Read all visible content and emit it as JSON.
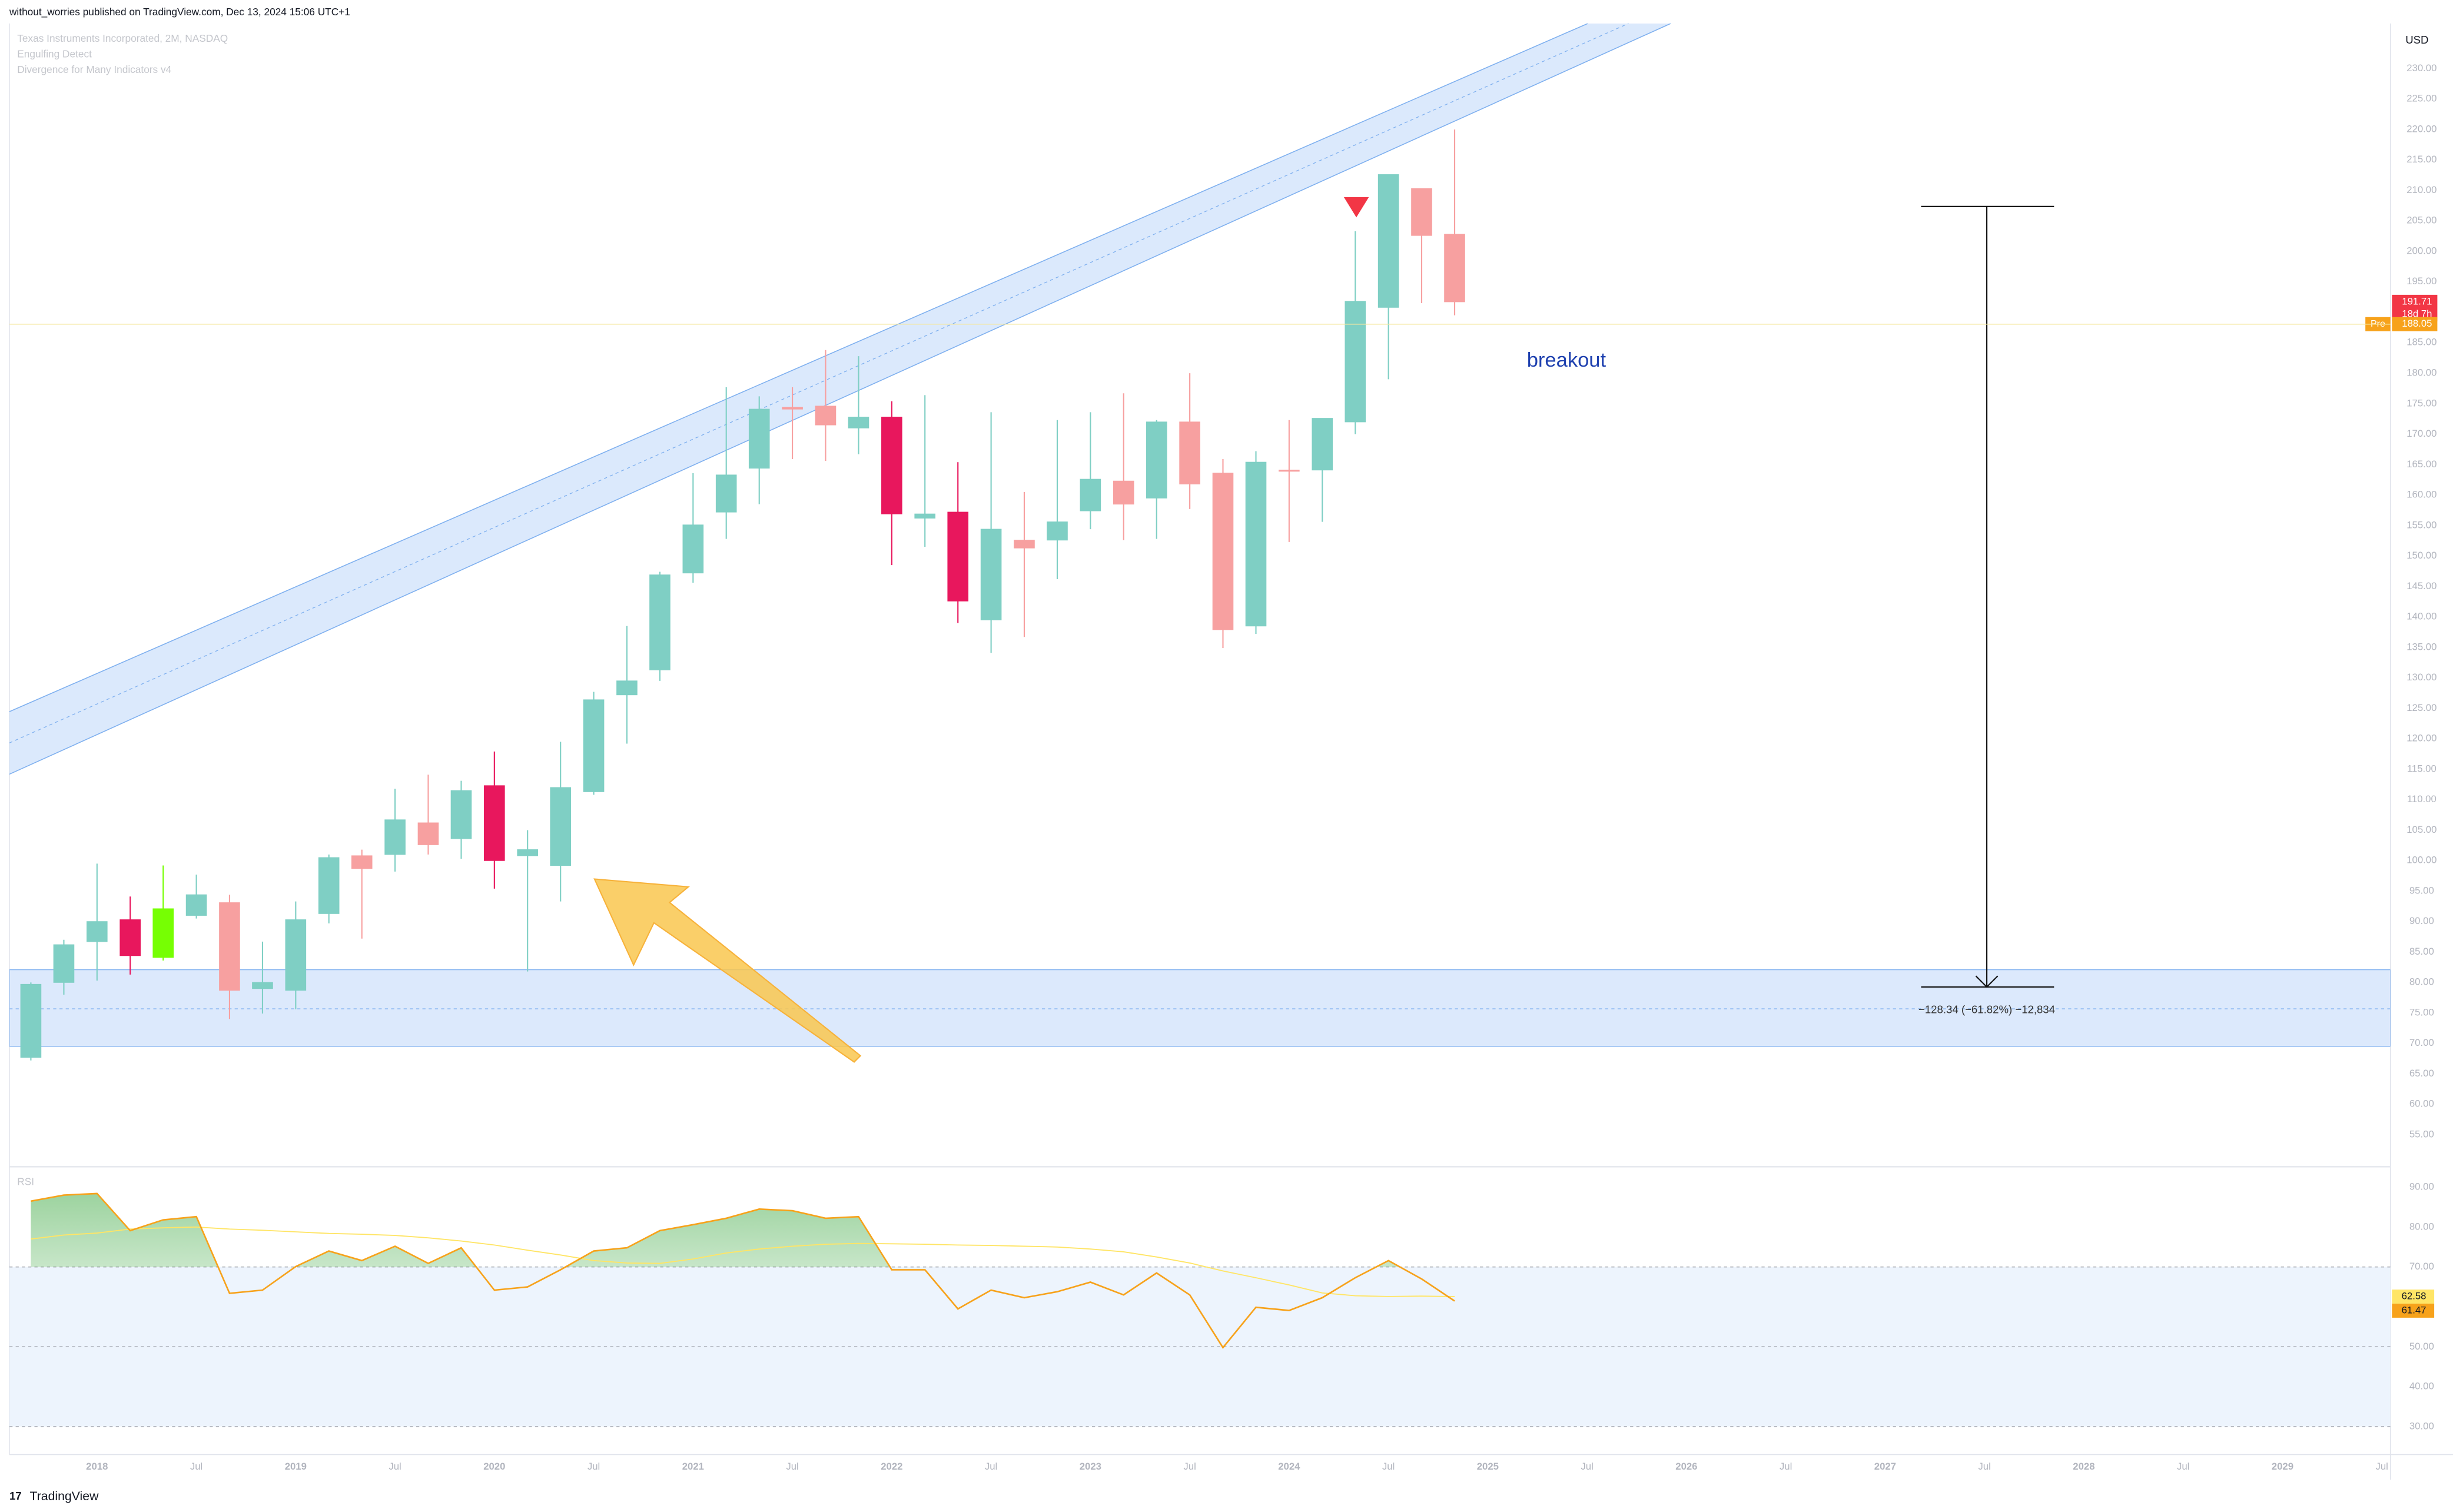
{
  "header": {
    "publisher": "without_worries published on TradingView.com, Dec 13, 2024 15:06 UTC+1",
    "symbol": "Texas Instruments Incorporated, 2M, NASDAQ",
    "indicator_1": "Engulfing Detect",
    "indicator_2": "Divergence for Many Indicators v4"
  },
  "chart_data": {
    "type": "candlestick",
    "x": [
      2017.667,
      2017.833,
      2018,
      2018.167,
      2018.333,
      2018.5,
      2018.667,
      2018.833,
      2019,
      2019.167,
      2019.333,
      2019.5,
      2019.667,
      2019.833,
      2020,
      2020.167,
      2020.333,
      2020.5,
      2020.667,
      2020.833,
      2021,
      2021.167,
      2021.333,
      2021.5,
      2021.667,
      2021.833,
      2022,
      2022.167,
      2022.333,
      2022.5,
      2022.667,
      2022.833,
      2023,
      2023.167,
      2023.333,
      2023.5,
      2023.667,
      2023.833,
      2024,
      2024.167,
      2024.333,
      2024.5,
      2024.667,
      2024.833
    ],
    "open": [
      67.7,
      80,
      86.7,
      90.3,
      84.1,
      91,
      93.1,
      79,
      78.7,
      91.3,
      100.8,
      101,
      106.2,
      103.6,
      112.3,
      100.8,
      99.2,
      111.3,
      127.2,
      131.3,
      147.2,
      157.2,
      164.4,
      174.4,
      174.6,
      171,
      172.8,
      156.2,
      157.2,
      139.5,
      152.6,
      152.6,
      157.4,
      162.3,
      159.5,
      172,
      163.6,
      138.5,
      164.1,
      164.1,
      172,
      190.8,
      210.3,
      202.8
    ],
    "high": [
      80,
      87,
      99.5,
      94.1,
      99.2,
      97.7,
      94.4,
      86.7,
      93.3,
      101,
      101.8,
      111.8,
      114.1,
      113.1,
      117.9,
      105,
      119.5,
      127.7,
      138.5,
      147.4,
      163.6,
      177.7,
      176.2,
      177.7,
      183.8,
      182.8,
      175.4,
      176.4,
      165.4,
      173.6,
      160.5,
      172.3,
      173.6,
      176.7,
      172.3,
      180,
      165.9,
      167.2,
      172.3,
      172.6,
      203.3,
      212.6,
      210.3,
      220
    ],
    "low": [
      67.2,
      78,
      80.3,
      81.3,
      83.6,
      90.5,
      74,
      74.9,
      75.6,
      89.7,
      87.2,
      98.2,
      101,
      100.3,
      95.4,
      81.8,
      93.3,
      110.8,
      119.2,
      129.5,
      145.6,
      152.8,
      158.5,
      165.9,
      165.6,
      166.7,
      148.5,
      151.5,
      139,
      134.1,
      136.7,
      146.2,
      154.4,
      152.6,
      152.8,
      157.7,
      134.9,
      137.2,
      152.3,
      155.6,
      170,
      179,
      191.5,
      189.5
    ],
    "close": [
      79.7,
      86.2,
      90,
      84.4,
      92.1,
      94.4,
      78.7,
      80,
      90.3,
      100.5,
      98.7,
      106.7,
      102.6,
      111.5,
      100,
      101.8,
      112,
      126.4,
      129.5,
      146.9,
      155.1,
      163.3,
      174.1,
      174.1,
      171.5,
      172.8,
      156.9,
      156.9,
      142.6,
      154.4,
      151.3,
      155.6,
      162.6,
      158.5,
      172,
      161.8,
      137.9,
      165.4,
      164,
      172.6,
      191.8,
      212.6,
      202.6,
      191.71
    ],
    "colors": [
      "#7fcfc4",
      "#7fcfc4",
      "#7fcfc4",
      "#e8175d",
      "#76ff03",
      "#7fcfc4",
      "#f7a0a0",
      "#7fcfc4",
      "#7fcfc4",
      "#7fcfc4",
      "#f7a0a0",
      "#7fcfc4",
      "#f7a0a0",
      "#7fcfc4",
      "#e8175d",
      "#7fcfc4",
      "#7fcfc4",
      "#7fcfc4",
      "#7fcfc4",
      "#7fcfc4",
      "#7fcfc4",
      "#7fcfc4",
      "#7fcfc4",
      "#f7a0a0",
      "#f7a0a0",
      "#7fcfc4",
      "#e8175d",
      "#7fcfc4",
      "#e8175d",
      "#7fcfc4",
      "#f7a0a0",
      "#7fcfc4",
      "#7fcfc4",
      "#f7a0a0",
      "#7fcfc4",
      "#f7a0a0",
      "#f7a0a0",
      "#7fcfc4",
      "#f7a0a0",
      "#7fcfc4",
      "#7fcfc4",
      "#7fcfc4",
      "#f7a0a0",
      "#f7a0a0"
    ],
    "xlim": [
      2017.559,
      2029.543
    ],
    "xticks": [
      {
        "value": 2018,
        "label": "2018"
      },
      {
        "value": 2018.5,
        "label": "Jul"
      },
      {
        "value": 2019,
        "label": "2019"
      },
      {
        "value": 2019.5,
        "label": "Jul"
      },
      {
        "value": 2020,
        "label": "2020"
      },
      {
        "value": 2020.5,
        "label": "Jul"
      },
      {
        "value": 2021,
        "label": "2021"
      },
      {
        "value": 2021.5,
        "label": "Jul"
      },
      {
        "value": 2022,
        "label": "2022"
      },
      {
        "value": 2022.5,
        "label": "Jul"
      },
      {
        "value": 2023,
        "label": "2023"
      },
      {
        "value": 2023.5,
        "label": "Jul"
      },
      {
        "value": 2024,
        "label": "2024"
      },
      {
        "value": 2024.5,
        "label": "Jul"
      },
      {
        "value": 2025,
        "label": "2025"
      },
      {
        "value": 2025.5,
        "label": "Jul"
      },
      {
        "value": 2026,
        "label": "2026"
      },
      {
        "value": 2026.5,
        "label": "Jul"
      },
      {
        "value": 2027,
        "label": "2027"
      },
      {
        "value": 2027.5,
        "label": "Jul"
      },
      {
        "value": 2028,
        "label": "2028"
      },
      {
        "value": 2028.5,
        "label": "Jul"
      },
      {
        "value": 2029,
        "label": "2029"
      },
      {
        "value": 2029.5,
        "label": "Jul"
      }
    ],
    "ylim": [
      50,
      237.4
    ],
    "yticks": [
      {
        "value": 55,
        "label": "55.00"
      },
      {
        "value": 60,
        "label": "60.00"
      },
      {
        "value": 65,
        "label": "65.00"
      },
      {
        "value": 70,
        "label": "70.00"
      },
      {
        "value": 75,
        "label": "75.00"
      },
      {
        "value": 80,
        "label": "80.00"
      },
      {
        "value": 85,
        "label": "85.00"
      },
      {
        "value": 90,
        "label": "90.00"
      },
      {
        "value": 95,
        "label": "95.00"
      },
      {
        "value": 100,
        "label": "100.00"
      },
      {
        "value": 105,
        "label": "105.00"
      },
      {
        "value": 110,
        "label": "110.00"
      },
      {
        "value": 115,
        "label": "115.00"
      },
      {
        "value": 120,
        "label": "120.00"
      },
      {
        "value": 125,
        "label": "125.00"
      },
      {
        "value": 130,
        "label": "130.00"
      },
      {
        "value": 135,
        "label": "135.00"
      },
      {
        "value": 140,
        "label": "140.00"
      },
      {
        "value": 145,
        "label": "145.00"
      },
      {
        "value": 150,
        "label": "150.00"
      },
      {
        "value": 155,
        "label": "155.00"
      },
      {
        "value": 160,
        "label": "160.00"
      },
      {
        "value": 165,
        "label": "165.00"
      },
      {
        "value": 170,
        "label": "170.00"
      },
      {
        "value": 175,
        "label": "175.00"
      },
      {
        "value": 180,
        "label": "180.00"
      },
      {
        "value": 185,
        "label": "185.00"
      },
      {
        "value": 190,
        "label": "190.00"
      },
      {
        "value": 195,
        "label": "195.00"
      },
      {
        "value": 200,
        "label": "200.00"
      },
      {
        "value": 205,
        "label": "205.00"
      },
      {
        "value": 210,
        "label": "210.00"
      },
      {
        "value": 215,
        "label": "215.00"
      },
      {
        "value": 220,
        "label": "220.00"
      },
      {
        "value": 225,
        "label": "225.00"
      },
      {
        "value": 230,
        "label": "230.00"
      }
    ],
    "y_axis_label": "USD",
    "countdown": "18d 7h",
    "pre_market": {
      "label": "Pre",
      "value": 188.05
    },
    "annotations": {
      "breakout": "breakout",
      "measure": "−128.34 (−61.82%) −12,834"
    },
    "rsi": {
      "title": "RSI",
      "values": [
        86.5,
        88,
        88.4,
        79.1,
        81.8,
        82.6,
        63.4,
        64.2,
        70.1,
        74,
        71.6,
        75.2,
        70.9,
        74.8,
        64.2,
        65,
        69.3,
        74,
        74.8,
        79.1,
        80.6,
        82.2,
        84.5,
        84.1,
        82.2,
        82.6,
        69.3,
        69.3,
        59.5,
        64.2,
        62.3,
        63.8,
        66.2,
        63,
        68.5,
        63,
        49.8,
        59.9,
        59.1,
        62.3,
        67.3,
        71.6,
        67,
        61.47
      ],
      "ma_values": [
        77,
        78,
        78.5,
        79.5,
        79.8,
        80,
        79.5,
        79.2,
        78.8,
        78.4,
        78.2,
        77.9,
        77.3,
        76.5,
        75.5,
        74.2,
        73,
        71.6,
        71,
        70.9,
        72,
        73.5,
        74.5,
        75.2,
        75.7,
        75.9,
        75.8,
        75.7,
        75.5,
        75.4,
        75.2,
        75,
        74.5,
        73.8,
        72.5,
        71,
        69,
        67.3,
        65.5,
        63.5,
        62.8,
        62.6,
        62.7,
        62.58
      ],
      "line_color": "#f7a21b",
      "ma_color": "#ffe566",
      "ylim": [
        23,
        94.7
      ],
      "levels": [
        70,
        50,
        30
      ],
      "yticks": [
        {
          "value": 30,
          "label": "30.00"
        },
        {
          "value": 40,
          "label": "40.00"
        },
        {
          "value": 50,
          "label": "50.00"
        },
        {
          "value": 60,
          "label": "60.00"
        },
        {
          "value": 70,
          "label": "70.00"
        },
        {
          "value": 80,
          "label": "80.00"
        },
        {
          "value": 90,
          "label": "90.00"
        }
      ]
    }
  },
  "footer": "TradingView"
}
